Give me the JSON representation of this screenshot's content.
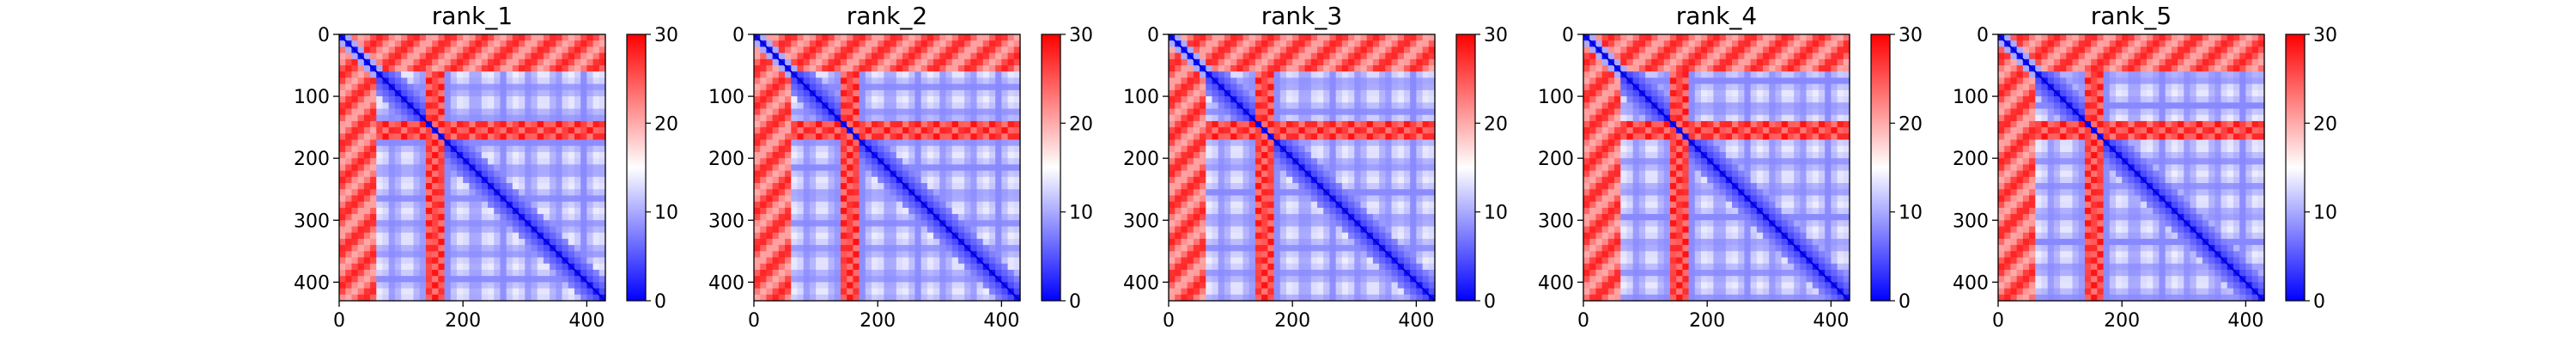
{
  "colormap": {
    "low": "#0000ff",
    "mid": "#ffffff",
    "high": "#ff0000"
  },
  "chart_data": [
    {
      "type": "heatmap",
      "title": "rank_1",
      "x_ticks": [
        0,
        200,
        400
      ],
      "y_ticks": [
        0,
        100,
        200,
        300,
        400
      ],
      "x_range": [
        0,
        430
      ],
      "y_range": [
        0,
        430
      ],
      "colorbar_ticks": [
        0,
        10,
        20,
        30
      ],
      "colorbar_range": [
        0,
        30
      ],
      "grid": false
    },
    {
      "type": "heatmap",
      "title": "rank_2",
      "x_ticks": [
        0,
        200,
        400
      ],
      "y_ticks": [
        0,
        100,
        200,
        300,
        400
      ],
      "x_range": [
        0,
        430
      ],
      "y_range": [
        0,
        430
      ],
      "colorbar_ticks": [
        0,
        10,
        20,
        30
      ],
      "colorbar_range": [
        0,
        30
      ],
      "grid": false
    },
    {
      "type": "heatmap",
      "title": "rank_3",
      "x_ticks": [
        0,
        200,
        400
      ],
      "y_ticks": [
        0,
        100,
        200,
        300,
        400
      ],
      "x_range": [
        0,
        430
      ],
      "y_range": [
        0,
        430
      ],
      "colorbar_ticks": [
        0,
        10,
        20,
        30
      ],
      "colorbar_range": [
        0,
        30
      ],
      "grid": false
    },
    {
      "type": "heatmap",
      "title": "rank_4",
      "x_ticks": [
        0,
        200,
        400
      ],
      "y_ticks": [
        0,
        100,
        200,
        300,
        400
      ],
      "x_range": [
        0,
        430
      ],
      "y_range": [
        0,
        430
      ],
      "colorbar_ticks": [
        0,
        10,
        20,
        30
      ],
      "colorbar_range": [
        0,
        30
      ],
      "grid": false
    },
    {
      "type": "heatmap",
      "title": "rank_5",
      "x_ticks": [
        0,
        200,
        400
      ],
      "y_ticks": [
        0,
        100,
        200,
        300,
        400
      ],
      "x_range": [
        0,
        430
      ],
      "y_range": [
        0,
        430
      ],
      "colorbar_ticks": [
        0,
        10,
        20,
        30
      ],
      "colorbar_range": [
        0,
        30
      ],
      "grid": false
    }
  ]
}
